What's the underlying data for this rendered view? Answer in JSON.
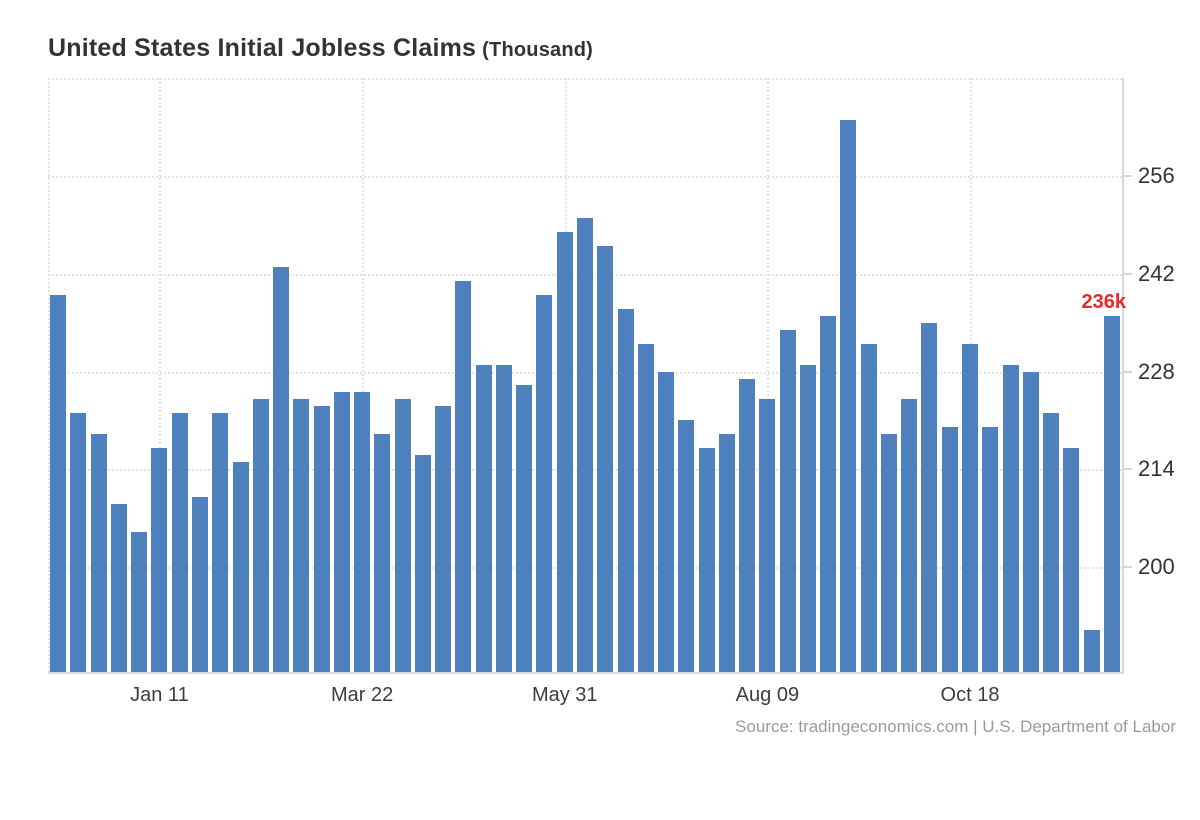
{
  "title": {
    "main": "United States Initial Jobless Claims",
    "unit": "(Thousand)"
  },
  "source": "Source: tradingeconomics.com | U.S. Department of Labor",
  "annotation": {
    "text": "236k",
    "color": "#e8282b"
  },
  "colors": {
    "bar": "#4d80bc",
    "grid": "#e4e4e4",
    "axis": "#d7d7d7",
    "tick_label": "#333333",
    "source_text": "#9a9a9a"
  },
  "chart_data": {
    "type": "bar",
    "title": "United States Initial Jobless Claims (Thousand)",
    "ylabel": "",
    "xlabel": "",
    "unit": "Thousand",
    "grid": "dotted",
    "legend_position": "none",
    "y_ticks": [
      200,
      214,
      228,
      242,
      256
    ],
    "ylim": [
      185,
      270
    ],
    "x_tick_labels": [
      "Jan 11",
      "Mar 22",
      "May 31",
      "Aug 09",
      "Oct 18"
    ],
    "x_tick_indices": [
      5,
      15,
      25,
      35,
      45
    ],
    "values": [
      239,
      222,
      219,
      209,
      205,
      217,
      222,
      210,
      222,
      215,
      224,
      243,
      224,
      223,
      225,
      225,
      219,
      224,
      216,
      223,
      241,
      229,
      229,
      226,
      239,
      248,
      250,
      246,
      237,
      232,
      228,
      221,
      217,
      219,
      227,
      224,
      234,
      229,
      236,
      264,
      232,
      219,
      224,
      235,
      220,
      232,
      220,
      229,
      228,
      222,
      217,
      191,
      236
    ],
    "last_value_annotation": "236k"
  }
}
